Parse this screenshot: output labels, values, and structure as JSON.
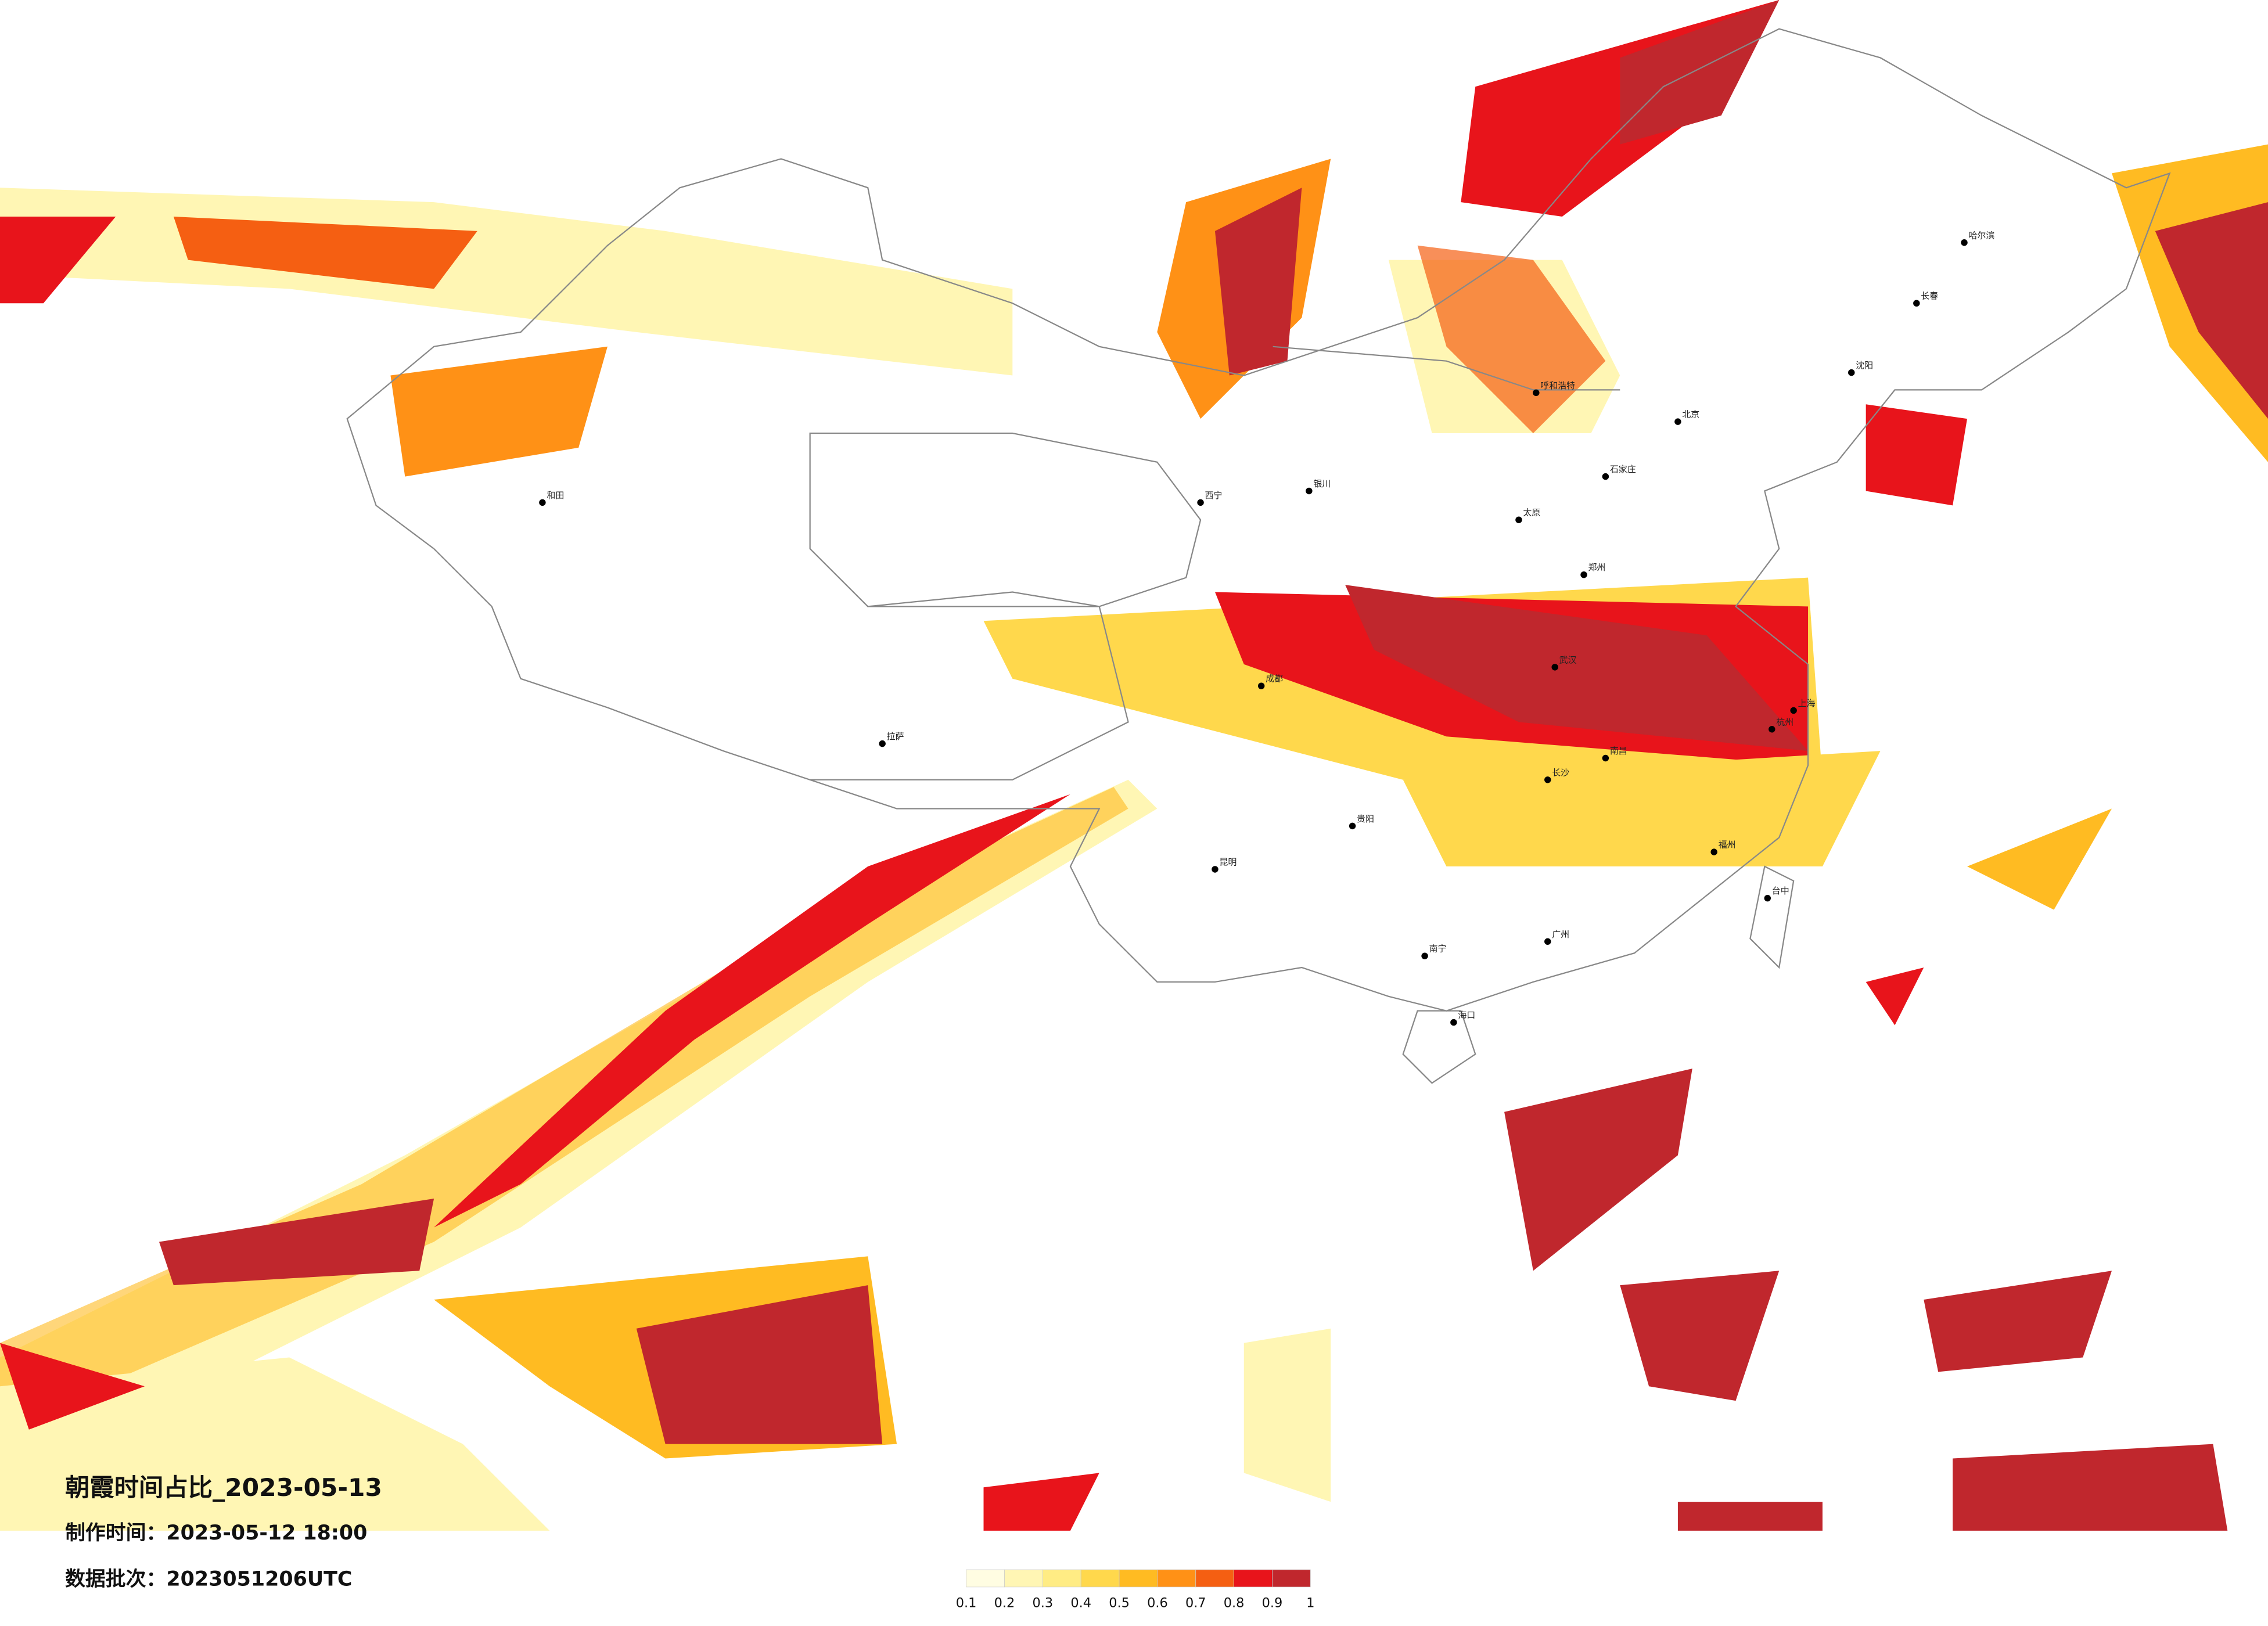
{
  "header": {
    "title": "朝霞时间占比_2023-05-13",
    "made": "制作时间：2023-05-12 18:00",
    "batch": "数据批次：2023051206UTC"
  },
  "legend": {
    "ticks": [
      0.1,
      0.2,
      0.3,
      0.4,
      0.5,
      0.6,
      0.7,
      0.8,
      0.9,
      1
    ],
    "colors": [
      "#fffde2",
      "#fff6b4",
      "#ffec84",
      "#ffd84c",
      "#ffbb22",
      "#ff9116",
      "#f55f12",
      "#e8141b",
      "#c0272d"
    ]
  },
  "cities": [
    "北京",
    "上海",
    "呼和浩特",
    "哈尔滨",
    "长春",
    "沈阳",
    "石家庄",
    "太原",
    "郑州",
    "武汉",
    "长沙",
    "南昌",
    "杭州",
    "福州",
    "广州",
    "南宁",
    "贵阳",
    "昆明",
    "成都",
    "西宁",
    "拉萨",
    "和田",
    "海口",
    "台中",
    "银川"
  ]
}
